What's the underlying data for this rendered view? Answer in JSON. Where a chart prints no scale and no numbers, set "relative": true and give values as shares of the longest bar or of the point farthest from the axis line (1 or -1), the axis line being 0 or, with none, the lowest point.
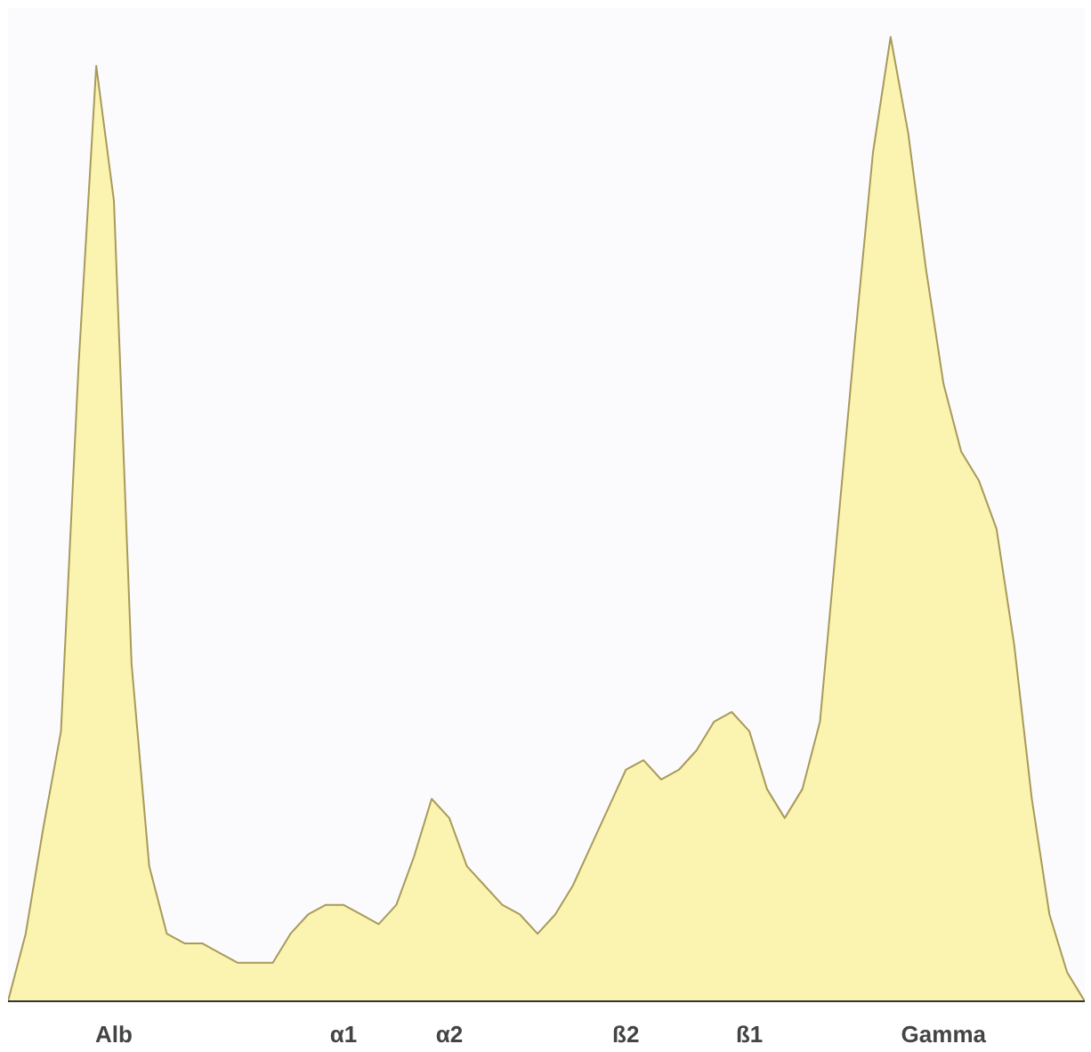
{
  "chart_data": {
    "type": "area",
    "relative": true,
    "categories": [
      null,
      null,
      null,
      null,
      null,
      null,
      "Alb",
      null,
      null,
      null,
      null,
      null,
      null,
      null,
      null,
      null,
      null,
      null,
      null,
      "α1",
      null,
      null,
      null,
      null,
      null,
      "α2",
      null,
      null,
      null,
      null,
      null,
      null,
      null,
      null,
      null,
      "ß2",
      null,
      null,
      null,
      null,
      null,
      null,
      "ß1",
      null,
      null,
      null,
      null,
      null,
      null,
      null,
      null,
      null,
      null,
      "Gamma",
      null,
      null,
      null,
      null,
      null,
      null,
      null,
      null
    ],
    "series": [
      {
        "color": "#fbf3b0",
        "values": [
          0,
          0.07,
          0.18,
          0.28,
          0.66,
          0.97,
          0.83,
          0.35,
          0.14,
          0.07,
          0.06,
          0.06,
          0.05,
          0.04,
          0.04,
          0.04,
          0.07,
          0.09,
          0.1,
          0.1,
          0.09,
          0.08,
          0.1,
          0.15,
          0.21,
          0.19,
          0.14,
          0.12,
          0.1,
          0.09,
          0.07,
          0.09,
          0.12,
          0.16,
          0.2,
          0.24,
          0.25,
          0.23,
          0.24,
          0.26,
          0.29,
          0.3,
          0.28,
          0.22,
          0.19,
          0.22,
          0.29,
          0.49,
          0.69,
          0.88,
          1.0,
          0.9,
          0.76,
          0.64,
          0.57,
          0.54,
          0.49,
          0.37,
          0.21,
          0.09,
          0.03,
          0
        ]
      }
    ]
  }
}
